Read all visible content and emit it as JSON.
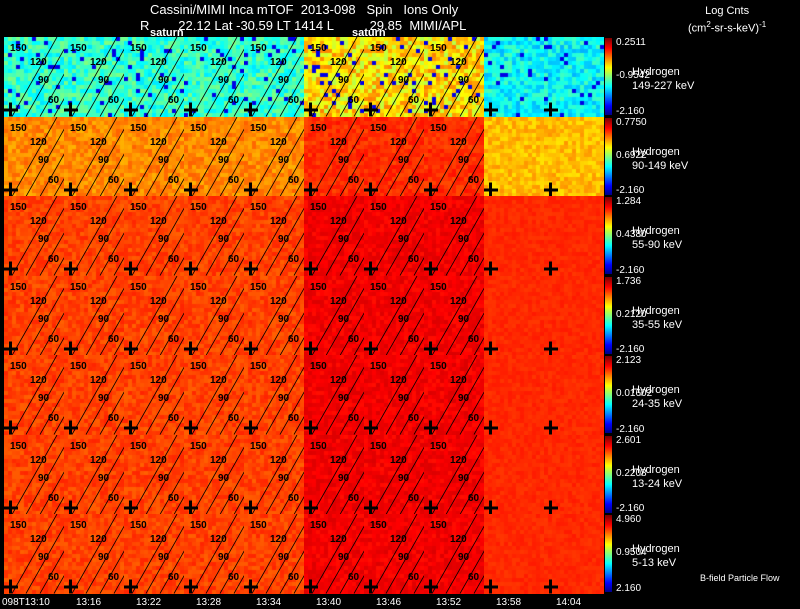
{
  "header": {
    "title": "Cassini/MIMI Inca mTOF  2013-098   Spin   Ions Only",
    "subtitle": "R        22.12 Lat -30.59 LT 1414 L          29.85  MIMI/APL",
    "units_line1": "Log Cnts",
    "units_line2": "(cm",
    "units_sup": "2",
    "units_line2b": "-sr-s-keV)",
    "units_sup2": "-1"
  },
  "ring_labels": [
    "150",
    "120",
    "90",
    "60"
  ],
  "saturn_label": "saturn",
  "rows": [
    {
      "species": "Hydrogen",
      "energy": "149-227 keV",
      "max": "0.2511",
      "mid": "-0.9542",
      "min": "-2.160",
      "palette": "low"
    },
    {
      "species": "Hydrogen",
      "energy": "90-149 keV",
      "max": "0.7750",
      "mid": "0.6922",
      "min": "-2.160",
      "palette": "mid"
    },
    {
      "species": "Hydrogen",
      "energy": "55-90 keV",
      "max": "1.284",
      "mid": "0.4380",
      "min": "-2.160",
      "palette": "high"
    },
    {
      "species": "Hydrogen",
      "energy": "35-55 keV",
      "max": "1.736",
      "mid": "0.2120",
      "min": "-2.160",
      "palette": "high"
    },
    {
      "species": "Hydrogen",
      "energy": "24-35 keV",
      "max": "2.123",
      "mid": "0.01602",
      "min": "-2.160",
      "palette": "high"
    },
    {
      "species": "Hydrogen",
      "energy": "13-24 keV",
      "max": "2.601",
      "mid": "0.2208",
      "min": "-2.160",
      "palette": "high"
    },
    {
      "species": "Hydrogen",
      "energy": "5-13 keV",
      "max": "4.960",
      "mid": "0.9504",
      "min": "2.160",
      "palette": "high"
    }
  ],
  "times": [
    "098T13:10",
    "13:16",
    "13:22",
    "13:28",
    "13:34",
    "13:40",
    "13:46",
    "13:52",
    "13:58",
    "14:04"
  ],
  "footer": "B-field Particle Flow",
  "colors": {
    "background": "#000000",
    "gridline": "#ffffff"
  }
}
